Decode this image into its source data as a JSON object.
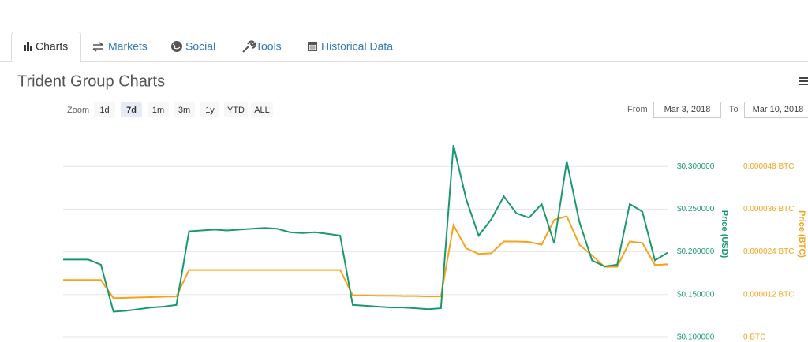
{
  "tabs": [
    "Charts",
    "Markets",
    "Social",
    "Tools",
    "Historical Data"
  ],
  "title": "Trident Group Charts",
  "zoom": {
    "label": "Zoom",
    "buttons": [
      "1d",
      "7d",
      "1m",
      "3m",
      "1y",
      "YTD",
      "ALL"
    ],
    "active_index": 1
  },
  "range": {
    "from_label": "From",
    "from": "Mar 3, 2018",
    "to_label": "To",
    "to": "Mar 10, 2018"
  },
  "chart_data": {
    "type": "line",
    "y_label": "Price (USD)",
    "y2_label": "Price (BTC)",
    "ylim": [
      0.1,
      0.33
    ],
    "yticks": [
      {
        "value": 0.1,
        "label": "$0.100000"
      },
      {
        "value": 0.15,
        "label": "$0.150000"
      },
      {
        "value": 0.2,
        "label": "$0.200000"
      },
      {
        "value": 0.25,
        "label": "$0.250000"
      },
      {
        "value": 0.3,
        "label": "$0.300000"
      }
    ],
    "y2lim": [
      0,
      5.52e-05
    ],
    "y2ticks": [
      {
        "value": 0,
        "label": "0 BTC"
      },
      {
        "value": 1.2e-05,
        "label": "0.000012 BTC"
      },
      {
        "value": 2.4e-05,
        "label": "0.000024 BTC"
      },
      {
        "value": 3.6e-05,
        "label": "0.000036 BTC"
      },
      {
        "value": 4.8e-05,
        "label": "0.000048 BTC"
      }
    ],
    "grid": true,
    "series": [
      {
        "color": "#1a9a6c",
        "values": [
          0.191,
          0.191,
          0.191,
          0.185,
          0.13,
          0.131,
          0.133,
          0.135,
          0.136,
          0.138,
          0.224,
          0.225,
          0.226,
          0.225,
          0.226,
          0.227,
          0.228,
          0.227,
          0.223,
          0.222,
          0.223,
          0.221,
          0.219,
          0.138,
          0.137,
          0.136,
          0.135,
          0.135,
          0.134,
          0.133,
          0.134,
          0.325,
          0.262,
          0.219,
          0.238,
          0.265,
          0.245,
          0.24,
          0.256,
          0.21,
          0.306,
          0.235,
          0.19,
          0.183,
          0.185,
          0.256,
          0.247,
          0.19,
          0.199
        ]
      },
      {
        "color": "#f7a21b",
        "axis": "y2",
        "values": [
          1.61e-05,
          1.61e-05,
          1.61e-05,
          1.61e-05,
          1.1e-05,
          1.11e-05,
          1.12e-05,
          1.13e-05,
          1.14e-05,
          1.15e-05,
          1.89e-05,
          1.89e-05,
          1.89e-05,
          1.89e-05,
          1.89e-05,
          1.89e-05,
          1.89e-05,
          1.89e-05,
          1.89e-05,
          1.89e-05,
          1.89e-05,
          1.89e-05,
          1.89e-05,
          1.18e-05,
          1.18e-05,
          1.17e-05,
          1.17e-05,
          1.16e-05,
          1.16e-05,
          1.15e-05,
          1.15e-05,
          3.15e-05,
          2.5e-05,
          2.34e-05,
          2.36e-05,
          2.69e-05,
          2.69e-05,
          2.68e-05,
          2.6e-05,
          3.3e-05,
          3.4e-05,
          2.6e-05,
          2.3e-05,
          1.98e-05,
          1.98e-05,
          2.69e-05,
          2.65e-05,
          2.03e-05,
          2.05e-05
        ]
      }
    ]
  }
}
